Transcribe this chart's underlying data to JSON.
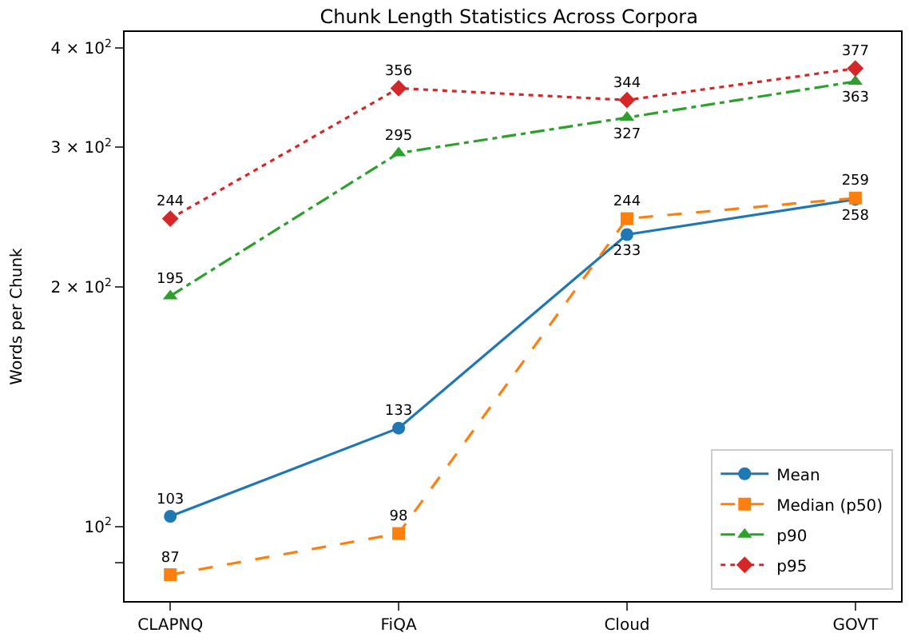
{
  "chart_data": {
    "type": "line",
    "title": "Chunk Length Statistics Across Corpora",
    "ylabel": "Words per Chunk",
    "categories": [
      "CLAPNQ",
      "FiQA",
      "Cloud",
      "GOVT"
    ],
    "series": [
      {
        "name": "Mean",
        "color": "#1f77b4",
        "marker": "circle",
        "line_style": "solid",
        "values": [
          103,
          133,
          233,
          258
        ]
      },
      {
        "name": "Median (p50)",
        "color": "#ff7f0e",
        "marker": "square",
        "line_style": "dashed",
        "values": [
          87,
          98,
          244,
          259
        ]
      },
      {
        "name": "p90",
        "color": "#2ca02c",
        "marker": "triangle",
        "line_style": "dashdot",
        "values": [
          195,
          295,
          327,
          363
        ]
      },
      {
        "name": "p95",
        "color": "#d62728",
        "marker": "diamond",
        "line_style": "dotted",
        "values": [
          244,
          356,
          344,
          377
        ]
      }
    ],
    "log": true,
    "ylim": [
      80.6,
      419
    ],
    "yticks": [
      {
        "value": 90,
        "label": null
      },
      {
        "value": 100,
        "label": "10$^{2}$"
      },
      {
        "value": 200,
        "label": "2 × 10$^{2}$"
      },
      {
        "value": 300,
        "label": "3 × 10$^{2}$"
      },
      {
        "value": 400,
        "label": "4 × 10$^{2}$"
      }
    ],
    "data_labels": true,
    "legend": "bottom right"
  }
}
